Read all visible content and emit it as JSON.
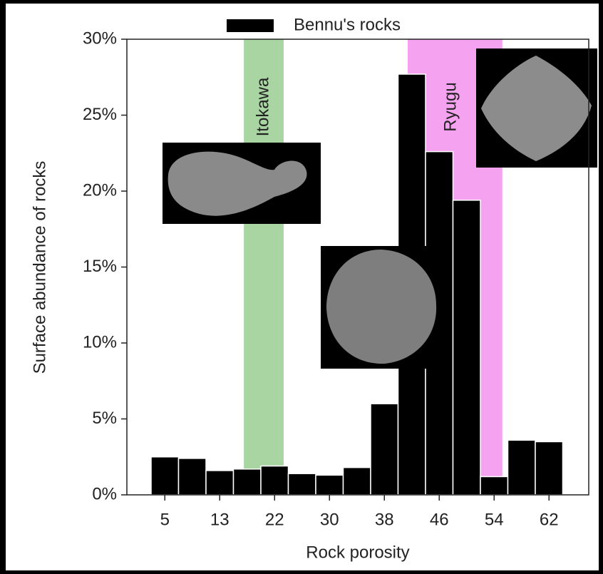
{
  "chart_data": {
    "type": "bar",
    "legend": "Bennu's rocks",
    "color": "#000000",
    "x_label": "Rock porosity",
    "y_label": "Surface abundance of rocks",
    "categories": [
      "5",
      null,
      "13",
      null,
      "22",
      null,
      "30",
      null,
      "38",
      null,
      "46",
      null,
      "54",
      null,
      "62"
    ],
    "values": [
      2.5,
      2.4,
      1.6,
      1.7,
      1.9,
      1.4,
      1.3,
      1.8,
      6.0,
      27.7,
      22.6,
      19.4,
      1.2,
      3.6,
      3.5
    ],
    "ylim": [
      0,
      30
    ],
    "yticks": [
      {
        "value": 0,
        "label": "0%"
      },
      {
        "value": 5,
        "label": "5%"
      },
      {
        "value": 10,
        "label": "10%"
      },
      {
        "value": 15,
        "label": "15%"
      },
      {
        "value": 20,
        "label": "20%"
      },
      {
        "value": 25,
        "label": "25%"
      },
      {
        "value": 30,
        "label": "30%"
      }
    ],
    "bands": [
      {
        "label": "Itokawa",
        "from": 3.38,
        "to": 4.83,
        "color": "#a8d5a2"
      },
      {
        "label": "Ryugu",
        "from": 9.35,
        "to": 12.8,
        "color": "#f5a3f0"
      }
    ]
  }
}
